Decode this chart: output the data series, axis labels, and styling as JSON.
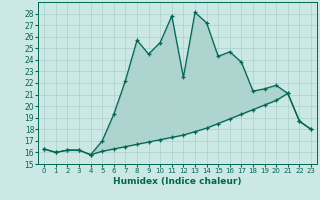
{
  "xlabel": "Humidex (Indice chaleur)",
  "background_color": "#cce8e4",
  "line_color": "#006655",
  "grid_color": "#b0d4d0",
  "xlim": [
    -0.5,
    23.5
  ],
  "ylim": [
    15,
    29
  ],
  "yticks": [
    15,
    16,
    17,
    18,
    19,
    20,
    21,
    22,
    23,
    24,
    25,
    26,
    27,
    28
  ],
  "xticks": [
    0,
    1,
    2,
    3,
    4,
    5,
    6,
    7,
    8,
    9,
    10,
    11,
    12,
    13,
    14,
    15,
    16,
    17,
    18,
    19,
    20,
    21,
    22,
    23
  ],
  "line1_x": [
    0,
    1,
    2,
    3,
    4,
    5,
    6,
    7,
    8,
    9,
    10,
    11,
    12,
    13,
    14,
    15,
    16,
    17,
    18,
    19,
    20,
    21,
    22,
    23
  ],
  "line1_y": [
    16.3,
    16.0,
    16.2,
    16.2,
    15.8,
    17.0,
    19.3,
    22.2,
    25.7,
    24.5,
    25.5,
    27.8,
    22.5,
    28.1,
    27.2,
    24.3,
    24.7,
    23.8,
    21.3,
    21.5,
    21.8,
    21.1,
    18.7,
    18.0
  ],
  "line2_x": [
    0,
    1,
    2,
    3,
    4,
    5,
    6,
    7,
    8,
    9,
    10,
    11,
    12,
    13,
    14,
    15,
    16,
    17,
    18,
    19,
    20,
    21,
    22,
    23
  ],
  "line2_y": [
    16.3,
    16.0,
    16.2,
    16.2,
    15.8,
    16.1,
    16.3,
    16.5,
    16.7,
    16.9,
    17.1,
    17.3,
    17.5,
    17.8,
    18.1,
    18.5,
    18.9,
    19.3,
    19.7,
    20.1,
    20.5,
    21.1,
    18.7,
    18.0
  ]
}
